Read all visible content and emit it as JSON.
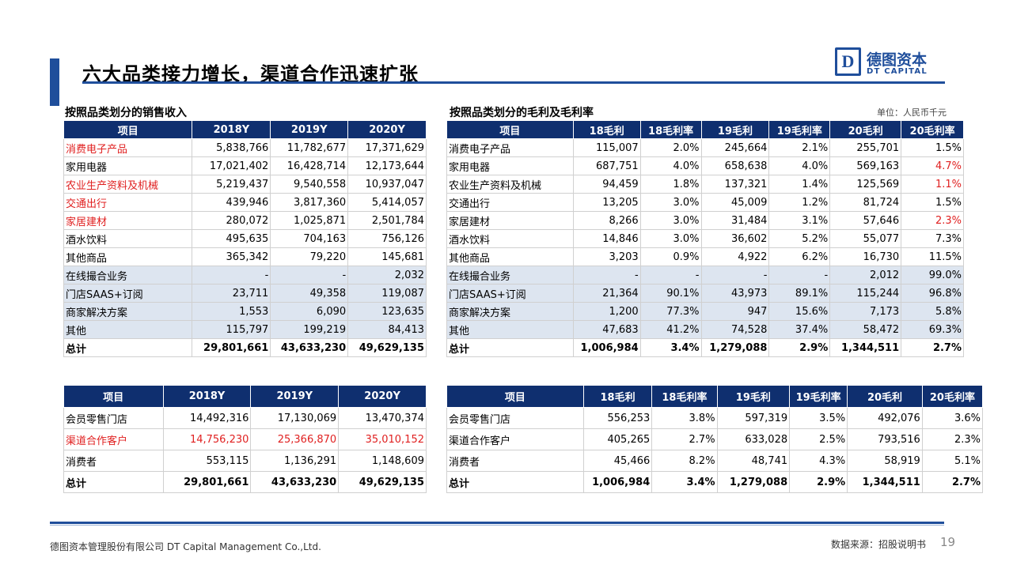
{
  "title": "六大品类接力增长，渠道合作迅速扩张",
  "logo": {
    "mark": "D",
    "cn": "德图资本",
    "en": "DT CAPITAL"
  },
  "sections": {
    "left_title": "按照品类划分的销售收入",
    "right_title": "按照品类划分的毛利及毛利率",
    "unit": "单位：人民币千元"
  },
  "table1": {
    "headers": [
      "项目",
      "2018Y",
      "2019Y",
      "2020Y"
    ],
    "rows": [
      [
        "消费电子产品",
        "5,838,766",
        "11,782,677",
        "17,371,629"
      ],
      [
        "家用电器",
        "17,021,402",
        "16,428,714",
        "12,173,644"
      ],
      [
        "农业生产资料及机械",
        "5,219,437",
        "9,540,558",
        "10,937,047"
      ],
      [
        "交通出行",
        "439,946",
        "3,817,360",
        "5,414,057"
      ],
      [
        "家居建材",
        "280,072",
        "1,025,871",
        "2,501,784"
      ],
      [
        "酒水饮料",
        "495,635",
        "704,163",
        "756,126"
      ],
      [
        "其他商品",
        "365,342",
        "79,220",
        "145,681"
      ],
      [
        "在线撮合业务",
        "-",
        "-",
        "2,032"
      ],
      [
        "门店SAAS+订阅",
        "23,711",
        "49,358",
        "119,087"
      ],
      [
        "商家解决方案",
        "1,553",
        "6,090",
        "123,635"
      ],
      [
        "其他",
        "115,797",
        "199,219",
        "84,413"
      ],
      [
        "总计",
        "29,801,661",
        "43,633,230",
        "49,629,135"
      ]
    ]
  },
  "table2": {
    "headers": [
      "项目",
      "18毛利",
      "18毛利率",
      "19毛利",
      "19毛利率",
      "20毛利",
      "20毛利率"
    ],
    "rows": [
      [
        "消费电子产品",
        "115,007",
        "2.0%",
        "245,664",
        "2.1%",
        "255,701",
        "1.5%"
      ],
      [
        "家用电器",
        "687,751",
        "4.0%",
        "658,638",
        "4.0%",
        "569,163",
        "4.7%"
      ],
      [
        "农业生产资料及机械",
        "94,459",
        "1.8%",
        "137,321",
        "1.4%",
        "125,569",
        "1.1%"
      ],
      [
        "交通出行",
        "13,205",
        "3.0%",
        "45,009",
        "1.2%",
        "81,724",
        "1.5%"
      ],
      [
        "家居建材",
        "8,266",
        "3.0%",
        "31,484",
        "3.1%",
        "57,646",
        "2.3%"
      ],
      [
        "酒水饮料",
        "14,846",
        "3.0%",
        "36,602",
        "5.2%",
        "55,077",
        "7.3%"
      ],
      [
        "其他商品",
        "3,203",
        "0.9%",
        "4,922",
        "6.2%",
        "16,730",
        "11.5%"
      ],
      [
        "在线撮合业务",
        "-",
        "-",
        "-",
        "-",
        "2,012",
        "99.0%"
      ],
      [
        "门店SAAS+订阅",
        "21,364",
        "90.1%",
        "43,973",
        "89.1%",
        "115,244",
        "96.8%"
      ],
      [
        "商家解决方案",
        "1,200",
        "77.3%",
        "947",
        "15.6%",
        "7,173",
        "5.8%"
      ],
      [
        "其他",
        "47,683",
        "41.2%",
        "74,528",
        "37.4%",
        "58,472",
        "69.3%"
      ],
      [
        "总计",
        "1,006,984",
        "3.4%",
        "1,279,088",
        "2.9%",
        "1,344,511",
        "2.7%"
      ]
    ]
  },
  "table3": {
    "headers": [
      "项目",
      "2018Y",
      "2019Y",
      "2020Y"
    ],
    "rows": [
      [
        "会员零售门店",
        "14,492,316",
        "17,130,069",
        "13,470,374"
      ],
      [
        "渠道合作客户",
        "14,756,230",
        "25,366,870",
        "35,010,152"
      ],
      [
        "消费者",
        "553,115",
        "1,136,291",
        "1,148,609"
      ],
      [
        "总计",
        "29,801,661",
        "43,633,230",
        "49,629,135"
      ]
    ]
  },
  "table4": {
    "headers": [
      "项目",
      "18毛利",
      "18毛利率",
      "19毛利",
      "19毛利率",
      "20毛利",
      "20毛利率"
    ],
    "rows": [
      [
        "会员零售门店",
        "556,253",
        "3.8%",
        "597,319",
        "3.5%",
        "492,076",
        "3.6%"
      ],
      [
        "渠道合作客户",
        "405,265",
        "2.7%",
        "633,028",
        "2.5%",
        "793,516",
        "2.3%"
      ],
      [
        "消费者",
        "45,466",
        "8.2%",
        "48,741",
        "4.3%",
        "58,919",
        "5.1%"
      ],
      [
        "总计",
        "1,006,984",
        "3.4%",
        "1,279,088",
        "2.9%",
        "1,344,511",
        "2.7%"
      ]
    ]
  },
  "footer": {
    "company": "德图资本管理股份有限公司  DT Capital Management  Co.,Ltd.",
    "source": "数据来源：招股说明书",
    "page": "19"
  },
  "colors": {
    "accent": "#1f4e9b",
    "header_bg": "#0f2f6f",
    "highlight": "#e02020",
    "shade": "#dde5f0"
  }
}
